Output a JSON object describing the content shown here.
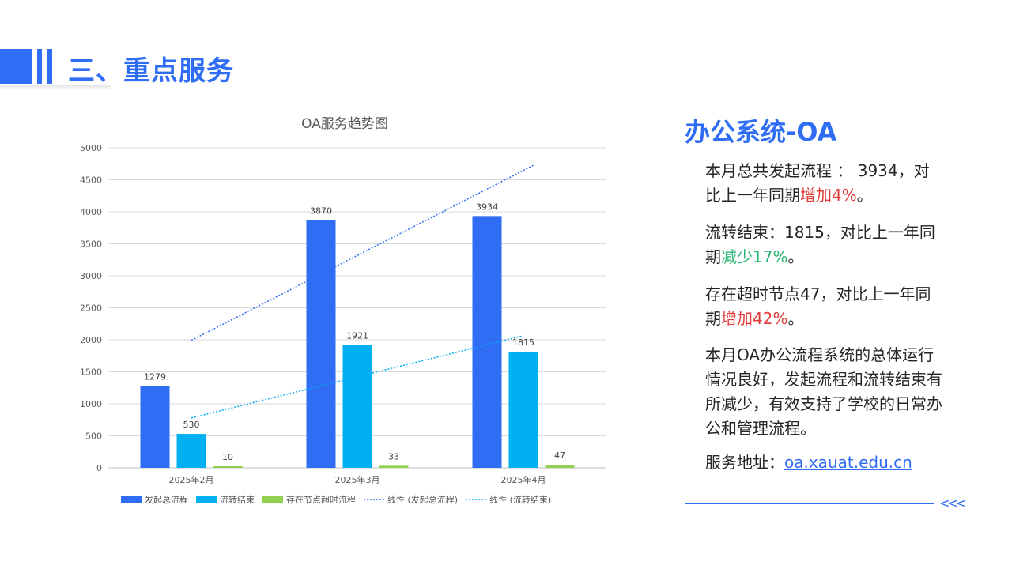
{
  "header": {
    "title": "三、重点服务"
  },
  "panel": {
    "title": "办公系统-OA",
    "p1_prefix": "本月总共发起流程 ： 3934，对比上一年同期",
    "p1_highlight": "增加4%",
    "p1_suffix": "。",
    "p2_prefix": "流转结束：1815，对比上一年同期",
    "p2_highlight": "减少17%",
    "p2_suffix": "。",
    "p3_prefix": "存在超时节点47，对比上一年同期",
    "p3_highlight": "增加42%",
    "p3_suffix": "。",
    "p4": "本月OA办公流程系统的总体运行情况良好，发起流程和流转结束有所减少，有效支持了学校的日常办公和管理流程。",
    "address_label": "服务地址：",
    "address_link": "oa.xauat.edu.cn",
    "chevrons": "<<<"
  },
  "colors": {
    "accent": "#2f6df5",
    "series1": "#2f6df5",
    "series2": "#00b0f0",
    "series3": "#92d050",
    "red": "#e03c3c",
    "green": "#2bb673"
  },
  "chart_data": {
    "type": "bar",
    "title": "OA服务趋势图",
    "categories": [
      "2025年2月",
      "2025年3月",
      "2025年4月"
    ],
    "ylim": [
      0,
      5000
    ],
    "yticks": [
      0,
      500,
      1000,
      1500,
      2000,
      2500,
      3000,
      3500,
      4000,
      4500,
      5000
    ],
    "grid": true,
    "legend_position": "bottom",
    "series": [
      {
        "name": "发起总流程",
        "values": [
          1279,
          3870,
          3934
        ],
        "color": "#2f6df5"
      },
      {
        "name": "流转结束",
        "values": [
          530,
          1921,
          1815
        ],
        "color": "#00b0f0"
      },
      {
        "name": "存在节点超时流程",
        "values": [
          10,
          33,
          47
        ],
        "color": "#92d050"
      }
    ],
    "trendlines": [
      {
        "name": "线性 (发起总流程)",
        "of": "发起总流程",
        "color": "#2f6df5"
      },
      {
        "name": "线性 (流转结束)",
        "of": "流转结束",
        "color": "#00b0f0"
      }
    ]
  }
}
